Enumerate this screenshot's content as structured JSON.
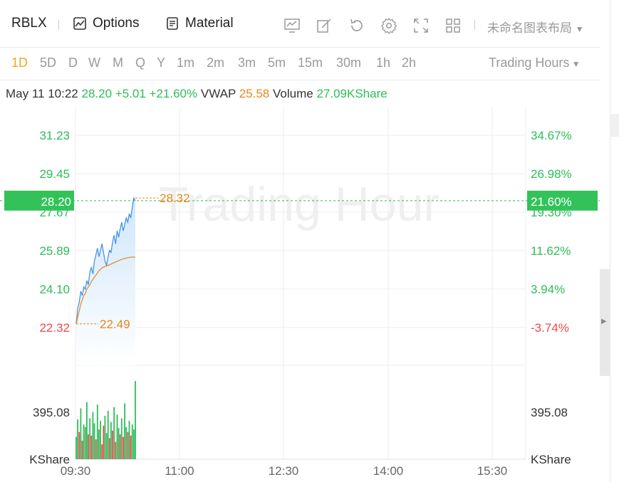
{
  "toolbar": {
    "ticker": "RBLX",
    "options_label": "Options",
    "material_label": "Material",
    "layout_name": "未命名图表布局"
  },
  "periods": [
    "1D",
    "5D",
    "D",
    "W",
    "M",
    "Q",
    "Y",
    "1m",
    "2m",
    "3m",
    "5m",
    "15m",
    "30m",
    "1h",
    "2h"
  ],
  "active_period": "1D",
  "trading_hours_label": "Trading Hours",
  "info": {
    "time": "May 11 10:22",
    "price": "28.20",
    "change": "+5.01",
    "change_pct": "+21.60%",
    "vwap_label": "VWAP",
    "vwap": "25.58",
    "volume_label": "Volume",
    "volume": "27.09KShare"
  },
  "chart_data": {
    "type": "line",
    "watermark": "Trading Hour",
    "price_axis_left": [
      "31.23",
      "29.45",
      "27.67",
      "25.89",
      "24.10",
      "22.32"
    ],
    "price_axis_right": [
      "34.67%",
      "26.98%",
      "19.30%",
      "11.62%",
      "3.94%",
      "-3.74%"
    ],
    "x_ticks": [
      "09:30",
      "11:00",
      "12:30",
      "14:00",
      "15:30"
    ],
    "current_price": "28.20",
    "current_pct": "21.60%",
    "high_label": "28.32",
    "low_label": "22.49",
    "volume_axis_value": "395.08",
    "volume_unit": "KShare",
    "colors": {
      "up": "#2ebd59",
      "down": "#f04848",
      "price_line": "#3a8ee6",
      "avg_line": "#e8861a"
    },
    "price_series": [
      22.49,
      23.2,
      23.5,
      24.0,
      23.8,
      24.2,
      24.1,
      24.5,
      24.3,
      24.9,
      25.1,
      24.8,
      25.4,
      25.7,
      26.0,
      25.6,
      25.9,
      26.2,
      25.8,
      25.4,
      25.2,
      25.6,
      25.9,
      25.8,
      26.3,
      26.6,
      26.2,
      26.8,
      26.5,
      26.9,
      27.2,
      26.8,
      27.1,
      27.4,
      27.2,
      27.6,
      27.4,
      27.9,
      28.32,
      28.2
    ],
    "avg_series": [
      22.49,
      22.8,
      23.1,
      23.4,
      23.6,
      23.8,
      23.9,
      24.1,
      24.2,
      24.3,
      24.45,
      24.55,
      24.65,
      24.75,
      24.85,
      24.95,
      25.02,
      25.08,
      25.12,
      25.15,
      25.17,
      25.2,
      25.23,
      25.26,
      25.3,
      25.33,
      25.36,
      25.39,
      25.42,
      25.45,
      25.48,
      25.5,
      25.52,
      25.54,
      25.56,
      25.57,
      25.58,
      25.58,
      25.58,
      25.58
    ],
    "volume_series": [
      180,
      320,
      220,
      410,
      150,
      280,
      260,
      460,
      200,
      330,
      190,
      380,
      290,
      160,
      440,
      240,
      310,
      120,
      270,
      350,
      210,
      390,
      170,
      300,
      230,
      420,
      140,
      360,
      250,
      200,
      330,
      180,
      450,
      260,
      220,
      310,
      190,
      280,
      240,
      630
    ],
    "volume_up": [
      1,
      1,
      0,
      1,
      0,
      1,
      1,
      1,
      0,
      1,
      0,
      1,
      1,
      0,
      1,
      1,
      1,
      0,
      0,
      1,
      1,
      1,
      0,
      1,
      0,
      1,
      0,
      1,
      1,
      0,
      1,
      0,
      1,
      1,
      0,
      1,
      0,
      1,
      1,
      1
    ]
  }
}
